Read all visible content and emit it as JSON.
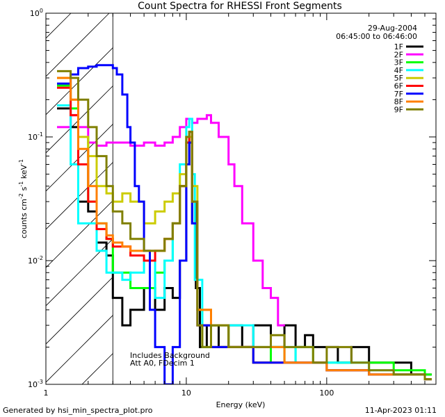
{
  "chart_data": {
    "type": "line",
    "title": "Count Spectra for RHESSI Front Segments",
    "xlabel": "Energy (keV)",
    "ylabel": "counts cm-2 s-1 keV-1",
    "xscale": "log",
    "yscale": "log",
    "xlim": [
      1,
      600
    ],
    "ylim": [
      0.001,
      1
    ],
    "x_ticks": [
      {
        "value": 1,
        "label": "1"
      },
      {
        "value": 10,
        "label": "10"
      },
      {
        "value": 100,
        "label": "100"
      }
    ],
    "y_ticks": [
      {
        "value": 1,
        "base": "10",
        "exp": "0"
      },
      {
        "value": 0.1,
        "base": "10",
        "exp": "-1"
      },
      {
        "value": 0.01,
        "base": "10",
        "exp": "-2"
      },
      {
        "value": 0.001,
        "base": "10",
        "exp": "-3"
      }
    ],
    "hatched_region_max_energy": 3,
    "date": "29-Aug-2004",
    "time_range": "06:45:00 to 06:46:00",
    "annotations": [
      "Includes Background",
      "Att A0, FDecim 1"
    ],
    "footer_left": "Generated by hsi_min_spectra_plot.pro",
    "footer_right": "11-Apr-2023 01:11",
    "series": [
      {
        "name": "1F",
        "color": "#000000",
        "x": [
          1.2,
          1.5,
          1.7,
          2.0,
          2.3,
          2.7,
          3.0,
          3.5,
          4.0,
          5.0,
          6.0,
          7.0,
          8.0,
          9.0,
          10.0,
          10.5,
          11.0,
          11.7,
          12.5,
          14,
          17,
          20,
          25,
          30,
          40,
          50,
          60,
          70,
          80,
          100,
          120,
          150,
          200,
          300,
          400,
          500
        ],
        "values": [
          0.17,
          0.12,
          0.03,
          0.025,
          0.014,
          0.011,
          0.005,
          0.003,
          0.004,
          0.006,
          0.004,
          0.006,
          0.005,
          0.01,
          0.06,
          0.09,
          0.03,
          0.006,
          0.002,
          0.003,
          0.002,
          0.003,
          0.002,
          0.003,
          0.002,
          0.003,
          0.002,
          0.0025,
          0.002,
          0.002,
          0.0015,
          0.002,
          0.0015,
          0.0015,
          0.0012,
          0.0012
        ]
      },
      {
        "name": "2F",
        "color": "#ff00ff",
        "x": [
          1.2,
          1.5,
          1.7,
          2.0,
          2.3,
          2.7,
          3.0,
          3.5,
          4.0,
          5.0,
          6.0,
          7.0,
          8.0,
          9.0,
          10.0,
          11.0,
          12.0,
          13.0,
          14.0,
          15.0,
          17.0,
          20.0,
          22.0,
          25.0,
          30.0,
          35.0,
          40.0,
          45.0
        ],
        "values": [
          0.12,
          0.15,
          0.12,
          0.09,
          0.085,
          0.09,
          0.09,
          0.09,
          0.085,
          0.09,
          0.085,
          0.09,
          0.1,
          0.12,
          0.14,
          0.13,
          0.14,
          0.14,
          0.15,
          0.13,
          0.1,
          0.06,
          0.04,
          0.02,
          0.01,
          0.006,
          0.005,
          0.003
        ]
      },
      {
        "name": "3F",
        "color": "#00ff00",
        "x": [
          1.2,
          1.5,
          1.7,
          2.0,
          2.3,
          2.7,
          3.0,
          3.5,
          4.0,
          5.0,
          6.0,
          7.0,
          8.0,
          9.0,
          10.0,
          10.5,
          11.0,
          12.0,
          13.0,
          15,
          20,
          25,
          30,
          40,
          50,
          60,
          80,
          100,
          150,
          200,
          300,
          500
        ],
        "values": [
          0.26,
          0.17,
          0.1,
          0.03,
          0.02,
          0.015,
          0.008,
          0.008,
          0.006,
          0.006,
          0.008,
          0.01,
          0.02,
          0.04,
          0.1,
          0.09,
          0.02,
          0.004,
          0.002,
          0.003,
          0.002,
          0.002,
          0.0015,
          0.002,
          0.0015,
          0.002,
          0.0015,
          0.0015,
          0.0015,
          0.0015,
          0.0013,
          0.0012
        ]
      },
      {
        "name": "4F",
        "color": "#00ffff",
        "x": [
          1.2,
          1.5,
          1.7,
          2.0,
          2.3,
          2.7,
          3.0,
          3.5,
          4.0,
          5.0,
          6.0,
          7.0,
          8.0,
          9.0,
          10.0,
          10.5,
          11.0,
          11.5,
          13,
          15,
          20,
          30,
          40,
          60,
          100,
          200,
          300,
          500
        ],
        "values": [
          0.18,
          0.06,
          0.02,
          0.02,
          0.012,
          0.008,
          0.008,
          0.007,
          0.008,
          0.01,
          0.005,
          0.01,
          0.02,
          0.06,
          0.12,
          0.14,
          0.05,
          0.007,
          0.003,
          0.002,
          0.003,
          0.002,
          0.002,
          0.0015,
          0.0015,
          0.0013,
          0.0012,
          0.0011
        ]
      },
      {
        "name": "5F",
        "color": "#cccc00",
        "x": [
          1.2,
          1.5,
          1.7,
          2.0,
          2.3,
          2.7,
          3.0,
          3.5,
          4.0,
          5.0,
          6.0,
          7.0,
          8.0,
          9.0,
          10.0,
          10.5,
          11.0,
          12.0,
          15,
          20,
          30,
          50,
          100,
          200,
          500
        ],
        "values": [
          0.3,
          0.2,
          0.1,
          0.07,
          0.04,
          0.035,
          0.03,
          0.035,
          0.03,
          0.02,
          0.025,
          0.03,
          0.035,
          0.05,
          0.09,
          0.1,
          0.04,
          0.004,
          0.002,
          0.002,
          0.0015,
          0.0015,
          0.0013,
          0.0012,
          0.0011
        ]
      },
      {
        "name": "6F",
        "color": "#ff0000",
        "x": [
          1.2,
          1.5,
          1.7,
          2.0,
          2.3,
          2.7,
          3.0,
          3.5,
          4.0,
          5.0,
          6.0,
          7.0,
          8.0,
          9.0,
          10.0,
          10.5,
          11.0,
          12.0,
          15,
          20,
          30,
          50,
          100,
          200,
          500
        ],
        "values": [
          0.25,
          0.15,
          0.06,
          0.03,
          0.018,
          0.015,
          0.013,
          0.013,
          0.011,
          0.01,
          0.012,
          0.015,
          0.02,
          0.04,
          0.09,
          0.11,
          0.02,
          0.003,
          0.002,
          0.002,
          0.0015,
          0.0015,
          0.0013,
          0.0012,
          0.0011
        ]
      },
      {
        "name": "7F",
        "color": "#0000ff",
        "x": [
          1.2,
          1.5,
          1.7,
          2.0,
          2.3,
          2.7,
          3.0,
          3.2,
          3.5,
          3.8,
          4.0,
          4.3,
          4.6,
          5.0,
          5.5,
          6.0,
          7.0,
          8.0,
          9.0,
          10.0,
          10.5,
          11.0,
          12.0,
          15,
          20,
          30,
          50,
          100,
          200,
          500
        ],
        "values": [
          0.27,
          0.32,
          0.36,
          0.37,
          0.38,
          0.38,
          0.36,
          0.32,
          0.22,
          0.12,
          0.09,
          0.04,
          0.03,
          0.012,
          0.004,
          0.002,
          0.001,
          0.002,
          0.01,
          0.06,
          0.09,
          0.02,
          0.003,
          0.002,
          0.002,
          0.0015,
          0.0015,
          0.0013,
          0.0012,
          0.0011
        ]
      },
      {
        "name": "8F",
        "color": "#ff7f00",
        "x": [
          1.2,
          1.5,
          1.7,
          2.0,
          2.3,
          2.7,
          3.0,
          3.5,
          4.0,
          5.0,
          6.0,
          7.0,
          8.0,
          9.0,
          10.0,
          10.5,
          11.0,
          12.0,
          15,
          20,
          30,
          50,
          100,
          200,
          500
        ],
        "values": [
          0.3,
          0.2,
          0.08,
          0.04,
          0.02,
          0.016,
          0.014,
          0.013,
          0.012,
          0.012,
          0.012,
          0.015,
          0.02,
          0.04,
          0.1,
          0.11,
          0.03,
          0.004,
          0.003,
          0.002,
          0.002,
          0.0015,
          0.0013,
          0.0012,
          0.0011
        ]
      },
      {
        "name": "9F",
        "color": "#808000",
        "x": [
          1.2,
          1.5,
          1.7,
          2.0,
          2.3,
          2.7,
          3.0,
          3.5,
          4.0,
          5.0,
          6.0,
          7.0,
          8.0,
          9.0,
          10.0,
          10.5,
          11.0,
          12.0,
          13,
          15,
          20,
          30,
          40,
          50,
          60,
          80,
          100,
          150,
          200,
          300,
          500
        ],
        "values": [
          0.34,
          0.3,
          0.2,
          0.12,
          0.07,
          0.04,
          0.025,
          0.02,
          0.015,
          0.012,
          0.012,
          0.015,
          0.02,
          0.04,
          0.1,
          0.11,
          0.03,
          0.003,
          0.002,
          0.003,
          0.002,
          0.002,
          0.0025,
          0.002,
          0.002,
          0.0015,
          0.002,
          0.0015,
          0.0013,
          0.0012,
          0.0011
        ]
      }
    ]
  }
}
